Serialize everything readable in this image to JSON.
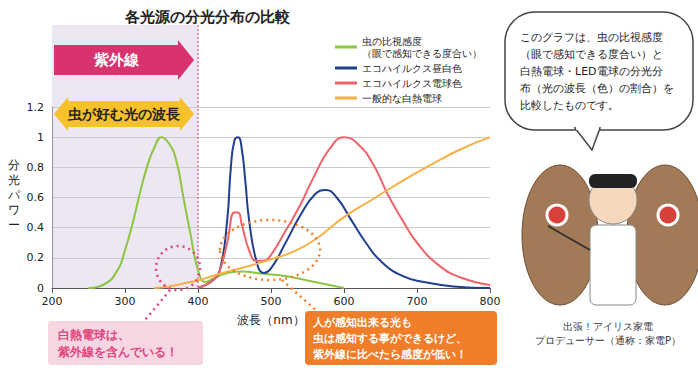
{
  "chart_data": {
    "type": "line",
    "title": "各光源の分光分布の比較",
    "x_label": "波長（nm）",
    "y_label": "分光パワー",
    "xlim": [
      200,
      800
    ],
    "xticks": [
      200,
      300,
      400,
      500,
      600,
      700,
      800
    ],
    "ylim": [
      0,
      1.2
    ],
    "yticks": [
      0,
      0.2,
      0.4,
      0.6,
      0.8,
      1,
      1.2
    ],
    "grid": true,
    "legend": "upper right",
    "series": [
      {
        "name": "虫の比視感度",
        "note": "（眼で感知できる度合い）",
        "color": "#8cc63e",
        "x": [
          250,
          270,
          290,
          300,
          310,
          320,
          330,
          340,
          350,
          360,
          370,
          380,
          390,
          400,
          410,
          420,
          440,
          460,
          480,
          500,
          520,
          550,
          580,
          600
        ],
        "values": [
          0,
          0.02,
          0.12,
          0.25,
          0.42,
          0.62,
          0.8,
          0.93,
          1.0,
          0.96,
          0.85,
          0.6,
          0.35,
          0.12,
          0.04,
          0.06,
          0.1,
          0.11,
          0.1,
          0.09,
          0.08,
          0.05,
          0.02,
          0
        ]
      },
      {
        "name": "エコハイルクス昼白色",
        "color": "#1f3f8f",
        "x": [
          400,
          420,
          430,
          440,
          445,
          450,
          455,
          460,
          465,
          470,
          480,
          490,
          500,
          520,
          540,
          560,
          575,
          590,
          610,
          630,
          650,
          680,
          710,
          750,
          800
        ],
        "values": [
          0,
          0.05,
          0.12,
          0.45,
          0.8,
          0.98,
          1.0,
          0.92,
          0.7,
          0.45,
          0.18,
          0.1,
          0.13,
          0.3,
          0.48,
          0.62,
          0.65,
          0.6,
          0.45,
          0.3,
          0.18,
          0.08,
          0.04,
          0.01,
          0
        ]
      },
      {
        "name": "エコハイルクス電球色",
        "color": "#f0636b",
        "x": [
          400,
          420,
          430,
          440,
          450,
          455,
          460,
          470,
          480,
          490,
          500,
          520,
          540,
          560,
          580,
          600,
          620,
          640,
          660,
          680,
          700,
          730,
          760,
          800
        ],
        "values": [
          0,
          0.05,
          0.12,
          0.3,
          0.5,
          0.5,
          0.42,
          0.25,
          0.18,
          0.18,
          0.22,
          0.38,
          0.55,
          0.75,
          0.92,
          1.0,
          0.95,
          0.82,
          0.62,
          0.45,
          0.3,
          0.15,
          0.07,
          0.02
        ]
      },
      {
        "name": "一般的な白熱電球",
        "color": "#f7b043",
        "x": [
          340,
          360,
          380,
          400,
          420,
          450,
          480,
          500,
          530,
          560,
          600,
          640,
          680,
          720,
          760,
          800
        ],
        "values": [
          0,
          0.01,
          0.03,
          0.05,
          0.08,
          0.12,
          0.16,
          0.19,
          0.24,
          0.32,
          0.47,
          0.59,
          0.71,
          0.82,
          0.92,
          1.0
        ]
      }
    ],
    "bands": [
      {
        "x": [
          200,
          400
        ],
        "label": "紫外線"
      },
      {
        "x": [
          200,
          400
        ],
        "label": "虫が好む光の波長"
      }
    ],
    "white_bulb_note": [
      "白熱電球は、",
      "紫外線を含んでいる！"
    ],
    "sensitivity_note": [
      "人が感知出来る光も",
      "虫は感知する事ができるけど、",
      "紫外線に比べたら感度が低い！"
    ],
    "speech": [
      "このグラフは、虫の比視感度",
      "（眼で感知できる度合い）と",
      "白熱電球・LED電球の分光分",
      "布（光の波長（色）の割合）を",
      "比較したものです。"
    ],
    "credit": [
      "出張！アイリス家電",
      "プロデューサー（通称：家電P）"
    ]
  }
}
